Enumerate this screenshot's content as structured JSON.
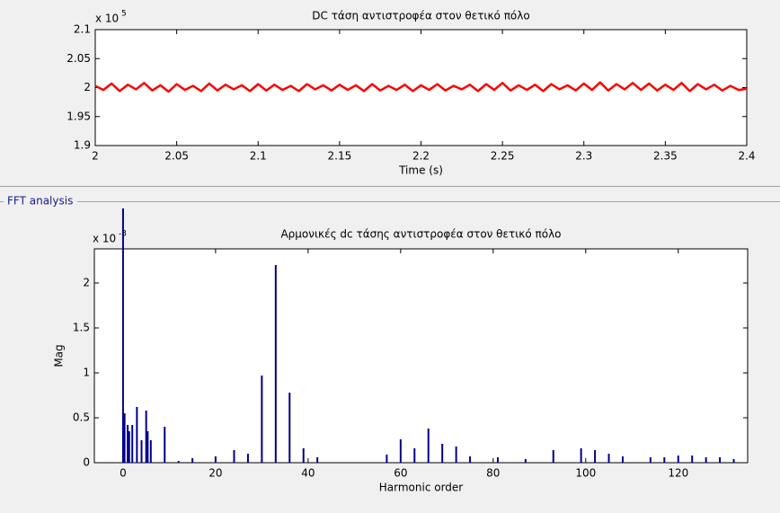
{
  "panel_title": "FFT analysis",
  "chart_data": [
    {
      "type": "line",
      "title": "DC τάση αντιστροφέα στον θετικό πόλο",
      "x_label": "Time (s)",
      "y_multiplier": {
        "base": "x 10",
        "exponent": "5"
      },
      "color": "#ff0000",
      "xlim": [
        2,
        2.4
      ],
      "xticks": [
        2,
        2.05,
        2.1,
        2.15,
        2.2,
        2.25,
        2.3,
        2.35,
        2.4
      ],
      "ylim": [
        1.9,
        2.1
      ],
      "yticks": [
        1.9,
        1.95,
        2,
        2.05,
        2.1
      ],
      "x": [
        2,
        2.005,
        2.01,
        2.015,
        2.02,
        2.025,
        2.03,
        2.035,
        2.04,
        2.045,
        2.05,
        2.055,
        2.06,
        2.065,
        2.07,
        2.075,
        2.08,
        2.085,
        2.09,
        2.095,
        2.1,
        2.105,
        2.11,
        2.115,
        2.12,
        2.125,
        2.13,
        2.135,
        2.14,
        2.145,
        2.15,
        2.155,
        2.16,
        2.165,
        2.17,
        2.175,
        2.18,
        2.185,
        2.19,
        2.195,
        2.2,
        2.205,
        2.21,
        2.215,
        2.22,
        2.225,
        2.23,
        2.235,
        2.24,
        2.245,
        2.25,
        2.255,
        2.26,
        2.265,
        2.27,
        2.275,
        2.28,
        2.285,
        2.29,
        2.295,
        2.3,
        2.305,
        2.31,
        2.315,
        2.32,
        2.325,
        2.33,
        2.335,
        2.34,
        2.345,
        2.35,
        2.355,
        2.36,
        2.365,
        2.37,
        2.375,
        2.38,
        2.385,
        2.39,
        2.395,
        2.4
      ],
      "values": [
        2.003,
        1.996,
        2.007,
        1.994,
        2.005,
        1.997,
        2.008,
        1.995,
        2.004,
        1.993,
        2.006,
        1.996,
        2.003,
        1.994,
        2.007,
        1.995,
        2.005,
        1.997,
        2.004,
        1.994,
        2.006,
        1.995,
        2.005,
        1.996,
        2.003,
        1.994,
        2.006,
        1.997,
        2.004,
        1.995,
        2.005,
        1.996,
        2.004,
        1.994,
        2.006,
        1.995,
        2.003,
        1.996,
        2.005,
        1.994,
        2.004,
        1.996,
        2.006,
        1.995,
        2.003,
        1.997,
        2.005,
        1.994,
        2.006,
        1.996,
        2.008,
        1.995,
        2.004,
        1.996,
        2.005,
        1.994,
        2.006,
        1.997,
        2.004,
        1.995,
        2.007,
        1.996,
        2.009,
        1.995,
        2.006,
        1.997,
        2.008,
        1.996,
        2.007,
        1.995,
        2.005,
        1.996,
        2.008,
        1.994,
        2.006,
        1.997,
        2.005,
        1.995,
        2.003,
        1.996,
        1.998
      ]
    },
    {
      "type": "stem",
      "title": "Αρμονικές dc τάσης αντιστροφέα στον θετικό πόλο",
      "x_label": "Harmonic order",
      "y_label": "Mag",
      "y_multiplier": {
        "base": "x 10",
        "exponent": "-3"
      },
      "color": "#00008b",
      "xlim": [
        -6.2,
        135
      ],
      "xticks": [
        0,
        20,
        40,
        60,
        80,
        100,
        120
      ],
      "ylim": [
        0,
        2.38
      ],
      "yticks": [
        0,
        0.5,
        1,
        1.5,
        2
      ],
      "x": [
        0,
        0.33,
        1,
        1.33,
        2,
        3,
        4,
        5,
        5.33,
        6,
        9,
        12,
        15,
        20,
        24,
        27,
        30,
        33,
        36,
        39,
        42,
        57,
        60,
        63,
        66,
        69,
        72,
        75,
        81,
        87,
        93,
        99,
        102,
        105,
        108,
        114,
        117,
        120,
        123,
        126,
        129,
        132
      ],
      "values": [
        2.83,
        0.55,
        0.42,
        0.35,
        0.42,
        0.62,
        0.25,
        0.58,
        0.35,
        0.25,
        0.4,
        0.02,
        0.05,
        0.07,
        0.14,
        0.1,
        0.97,
        2.2,
        0.78,
        0.16,
        0.06,
        0.09,
        0.26,
        0.16,
        0.38,
        0.21,
        0.18,
        0.07,
        0.06,
        0.04,
        0.14,
        0.16,
        0.14,
        0.1,
        0.07,
        0.06,
        0.06,
        0.08,
        0.08,
        0.06,
        0.06,
        0.04
      ]
    }
  ]
}
